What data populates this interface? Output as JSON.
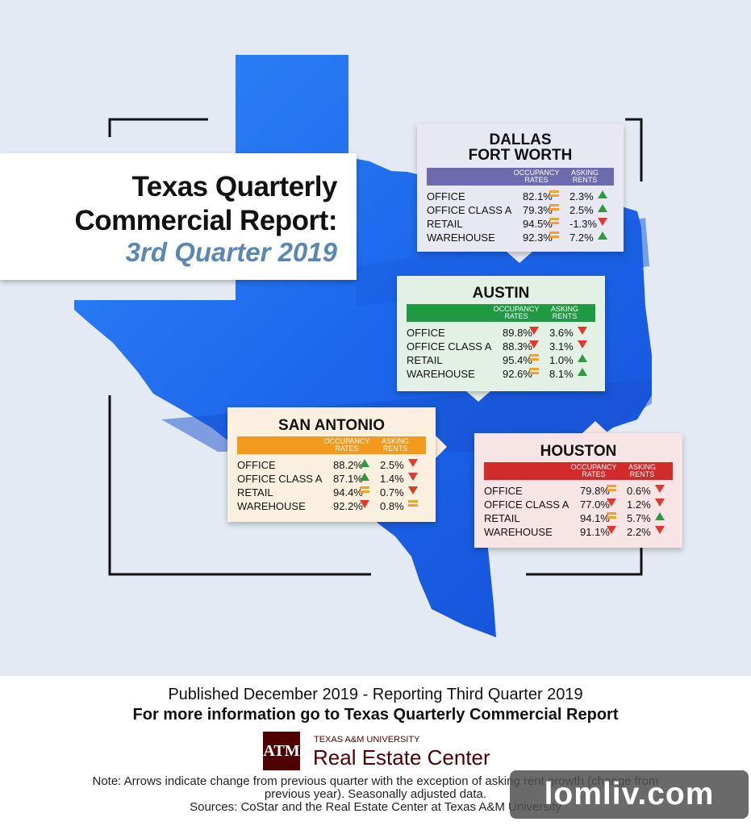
{
  "title": {
    "line1": "Texas Quarterly",
    "line2": "Commercial Report:",
    "line3": "3rd Quarter 2019"
  },
  "column_headers": {
    "occupancy_line1": "OCCUPANCY",
    "occupancy_line2": "RATES",
    "rents_line1": "ASKING",
    "rents_line2": "RENTS"
  },
  "regions": {
    "dallas": {
      "name_line1": "DALLAS",
      "name_line2": "FORT WORTH",
      "header_color": "#6b6bae",
      "rows": [
        {
          "label": "OFFICE",
          "occupancy": "82.1%",
          "occ_trend": "flat",
          "rent": "2.3%",
          "rent_trend": "up"
        },
        {
          "label": "OFFICE CLASS A",
          "occupancy": "79.3%",
          "occ_trend": "flat",
          "rent": "2.5%",
          "rent_trend": "up"
        },
        {
          "label": "RETAIL",
          "occupancy": "94.5%",
          "occ_trend": "flat",
          "rent": "-1.3%",
          "rent_trend": "down"
        },
        {
          "label": "WAREHOUSE",
          "occupancy": "92.3%",
          "occ_trend": "flat",
          "rent": "7.2%",
          "rent_trend": "up"
        }
      ]
    },
    "austin": {
      "name": "AUSTIN",
      "header_color": "#1f9a43",
      "rows": [
        {
          "label": "OFFICE",
          "occupancy": "89.8%",
          "occ_trend": "down",
          "rent": "3.6%",
          "rent_trend": "down"
        },
        {
          "label": "OFFICE CLASS A",
          "occupancy": "88.3%",
          "occ_trend": "down",
          "rent": "3.1%",
          "rent_trend": "down"
        },
        {
          "label": "RETAIL",
          "occupancy": "95.4%",
          "occ_trend": "flat",
          "rent": "1.0%",
          "rent_trend": "up"
        },
        {
          "label": "WAREHOUSE",
          "occupancy": "92.6%",
          "occ_trend": "flat",
          "rent": "8.1%",
          "rent_trend": "up"
        }
      ]
    },
    "san_antonio": {
      "name": "SAN ANTONIO",
      "header_color": "#f39a1e",
      "rows": [
        {
          "label": "OFFICE",
          "occupancy": "88.2%",
          "occ_trend": "up",
          "rent": "2.5%",
          "rent_trend": "down"
        },
        {
          "label": "OFFICE CLASS A",
          "occupancy": "87.1%",
          "occ_trend": "up",
          "rent": "1.4%",
          "rent_trend": "down"
        },
        {
          "label": "RETAIL",
          "occupancy": "94.4%",
          "occ_trend": "flat",
          "rent": "0.7%",
          "rent_trend": "down"
        },
        {
          "label": "WAREHOUSE",
          "occupancy": "92.2%",
          "occ_trend": "down",
          "rent": "0.8%",
          "rent_trend": "flat"
        }
      ]
    },
    "houston": {
      "name": "HOUSTON",
      "header_color": "#d12b2b",
      "rows": [
        {
          "label": "OFFICE",
          "occupancy": "79.8%",
          "occ_trend": "flat",
          "rent": "0.6%",
          "rent_trend": "down"
        },
        {
          "label": "OFFICE CLASS A",
          "occupancy": "77.0%",
          "occ_trend": "down",
          "rent": "1.2%",
          "rent_trend": "down"
        },
        {
          "label": "RETAIL",
          "occupancy": "94.1%",
          "occ_trend": "flat",
          "rent": "5.7%",
          "rent_trend": "up"
        },
        {
          "label": "WAREHOUSE",
          "occupancy": "91.1%",
          "occ_trend": "down",
          "rent": "2.2%",
          "rent_trend": "down"
        }
      ]
    }
  },
  "footer": {
    "published": "Published December 2019 - Reporting Third Quarter 2019",
    "more_info": "For more information go to Texas Quarterly Commercial Report",
    "logo_mark": "ATM",
    "logo_small": "TEXAS A&M UNIVERSITY",
    "logo_big": "Real Estate Center",
    "note_line1": "Note: Arrows indicate change from previous quarter with the exception of asking rent growth (change from",
    "note_line2": "previous year). Seasonally adjusted data.",
    "note_line3": "Sources: CoStar and the Real Estate Center at Texas A&M University"
  },
  "watermark": "lomliv.com",
  "colors": {
    "map_blue": "#1f6ff0",
    "background": "#e4eaf3",
    "trend_up": "#2e9a3d",
    "trend_down": "#e03a2f",
    "trend_flat": "#f2a22a"
  }
}
